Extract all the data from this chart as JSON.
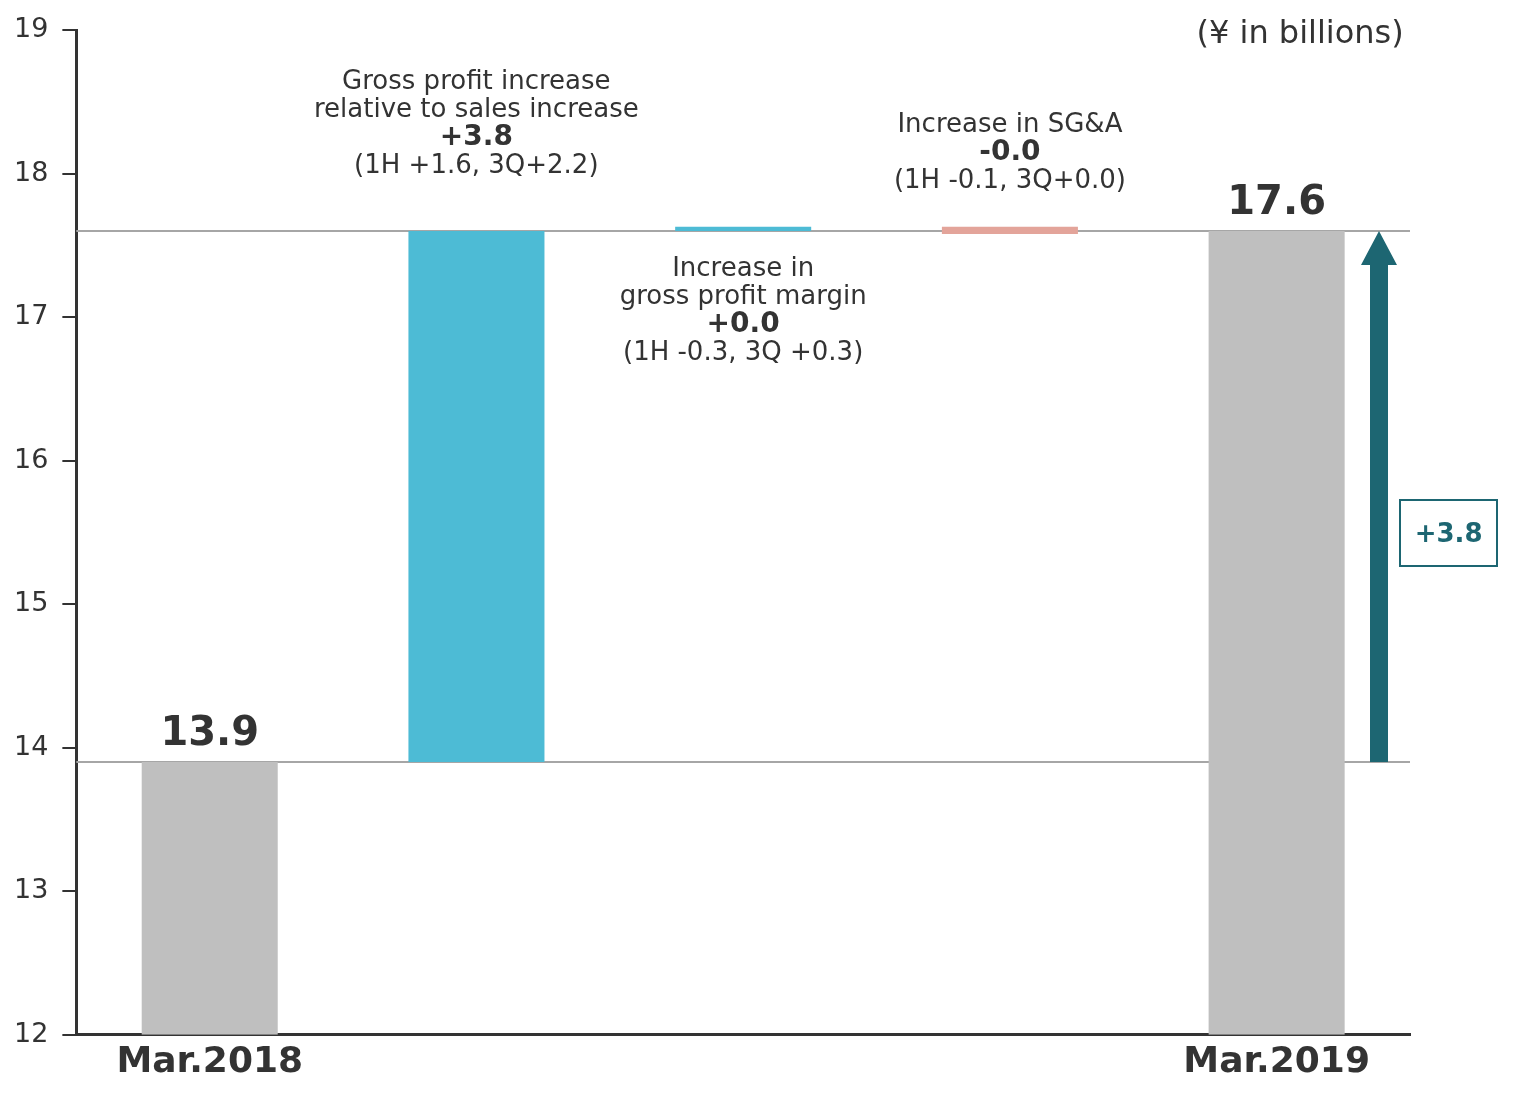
{
  "chart_data": {
    "type": "bar",
    "categories": [
      "Mar.2018",
      null,
      null,
      null,
      "Mar.2019"
    ],
    "values": [
      1.9,
      3.7,
      0.03,
      -0.05,
      5.6
    ],
    "base": [
      12,
      13.9,
      17.6,
      17.63,
      12
    ],
    "colors": [
      "#bfbfbf",
      "#4dbbd5",
      "#4dbbd5",
      "#e3a49a",
      "#bfbfbf"
    ],
    "value_labels": [
      "13.9",
      null,
      null,
      null,
      "17.6"
    ],
    "ylim": [
      12,
      19
    ],
    "yticks": [
      12,
      13,
      14,
      15,
      16,
      17,
      18,
      19
    ],
    "ref_lines": [
      {
        "axis": "y",
        "value": 13.9,
        "color": "#a6a6a6"
      },
      {
        "axis": "y",
        "value": 17.6,
        "color": "#a6a6a6"
      }
    ],
    "annotations": [
      "(¥ in billions)",
      "Gross profit increase\nrelative to sales increase\n+3.8\n(1H +1.6, 3Q+2.2)",
      "Increase in\ngross profit margin\n+0.0\n(1H -0.3, 3Q +0.3)",
      "Increase in SG&A\n-0.0\n(1H -0.1, 3Q+0.0)",
      "+3.8"
    ]
  }
}
